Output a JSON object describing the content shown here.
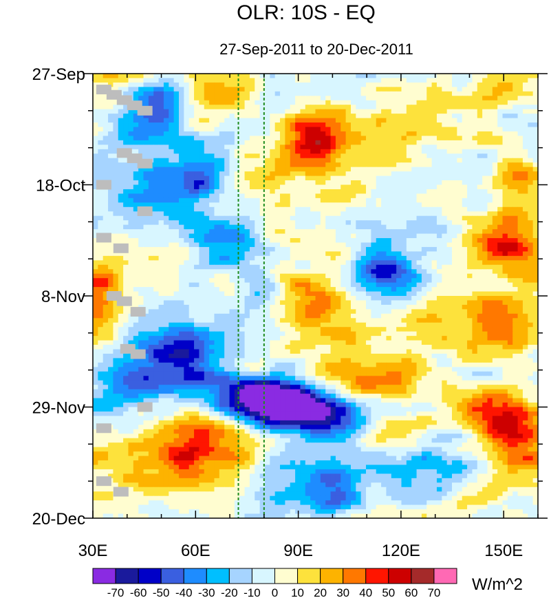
{
  "chart_data": {
    "type": "heatmap",
    "title": "OLR: 10S - EQ",
    "subtitle": "27-Sep-2011 to 20-Dec-2011",
    "x_axis": {
      "range": [
        30,
        160
      ],
      "tick_values": [
        30,
        60,
        90,
        120,
        150
      ],
      "tick_labels": [
        "30E",
        "60E",
        "90E",
        "120E",
        "150E"
      ],
      "minor_tick_step": 10
    },
    "y_axis": {
      "range_days": [
        0,
        84
      ],
      "tick_days": [
        0,
        21,
        42,
        63,
        84
      ],
      "tick_labels": [
        "27-Sep",
        "18-Oct",
        "8-Nov",
        "29-Nov",
        "20-Dec"
      ],
      "minor_tick_step_days": 7,
      "direction": "time increases downward"
    },
    "reference_lines_lon": [
      72.5,
      80
    ],
    "reference_line_color": "#1e8c1e",
    "missing_color": "#bdbdbd",
    "colorbar": {
      "unit_label": "W/m^2",
      "levels": [
        -70,
        -60,
        -50,
        -40,
        -30,
        -20,
        -10,
        0,
        10,
        20,
        30,
        40,
        50,
        60,
        70
      ],
      "level_labels": [
        "-70",
        "-60",
        "-50",
        "-40",
        "-30",
        "-20",
        "-10",
        "0",
        "10",
        "20",
        "30",
        "40",
        "50",
        "60",
        "70"
      ],
      "colors": [
        "#8a2be2",
        "#1a1a9c",
        "#0000c8",
        "#3a5fe0",
        "#1e8cff",
        "#00bfff",
        "#a6d4ff",
        "#d8f6ff",
        "#fffdd0",
        "#fde23c",
        "#fdb300",
        "#ff7800",
        "#ff1500",
        "#cd0000",
        "#a52a2a",
        "#ff69b4"
      ]
    },
    "anomaly_features": [
      {
        "lon": 95,
        "day": 12,
        "amp": 55,
        "sx": 7,
        "sy": 4
      },
      {
        "lon": 66,
        "day": 4,
        "amp": 35,
        "sx": 8,
        "sy": 3
      },
      {
        "lon": 49,
        "day": 6,
        "amp": -40,
        "sx": 6,
        "sy": 4
      },
      {
        "lon": 48,
        "day": 23,
        "amp": -40,
        "sx": 8,
        "sy": 4
      },
      {
        "lon": 62,
        "day": 20,
        "amp": -45,
        "sx": 5,
        "sy": 3
      },
      {
        "lon": 66,
        "day": 31,
        "amp": -40,
        "sx": 8,
        "sy": 4
      },
      {
        "lon": 155,
        "day": 19,
        "amp": 40,
        "sx": 6,
        "sy": 3
      },
      {
        "lon": 150,
        "day": 32,
        "amp": 45,
        "sx": 7,
        "sy": 4
      },
      {
        "lon": 117,
        "day": 38,
        "amp": -50,
        "sx": 6,
        "sy": 3
      },
      {
        "lon": 95,
        "day": 42,
        "amp": 35,
        "sx": 8,
        "sy": 5
      },
      {
        "lon": 150,
        "day": 48,
        "amp": 35,
        "sx": 10,
        "sy": 4
      },
      {
        "lon": 55,
        "day": 55,
        "amp": -50,
        "sx": 8,
        "sy": 5
      },
      {
        "lon": 75,
        "day": 61,
        "amp": -65,
        "sx": 9,
        "sy": 3
      },
      {
        "lon": 85,
        "day": 62,
        "amp": -60,
        "sx": 9,
        "sy": 3
      },
      {
        "lon": 96,
        "day": 64,
        "amp": -55,
        "sx": 9,
        "sy": 3
      },
      {
        "lon": 40,
        "day": 60,
        "amp": -30,
        "sx": 6,
        "sy": 4
      },
      {
        "lon": 112,
        "day": 58,
        "amp": 30,
        "sx": 10,
        "sy": 3
      },
      {
        "lon": 145,
        "day": 63,
        "amp": 45,
        "sx": 10,
        "sy": 3
      },
      {
        "lon": 60,
        "day": 72,
        "amp": 40,
        "sx": 10,
        "sy": 7
      },
      {
        "lon": 155,
        "day": 68,
        "amp": 40,
        "sx": 7,
        "sy": 4
      },
      {
        "lon": 100,
        "day": 78,
        "amp": -30,
        "sx": 10,
        "sy": 5
      },
      {
        "lon": 130,
        "day": 75,
        "amp": -35,
        "sx": 8,
        "sy": 4
      },
      {
        "lon": 120,
        "day": 68,
        "amp": 30,
        "sx": 8,
        "sy": 3
      },
      {
        "lon": 32,
        "day": 42,
        "amp": 30,
        "sx": 4,
        "sy": 5
      }
    ],
    "missing_cells_lon_day": [
      [
        33,
        3
      ],
      [
        36,
        4
      ],
      [
        39,
        5
      ],
      [
        42,
        6
      ],
      [
        45,
        7
      ],
      [
        39,
        15
      ],
      [
        42,
        16
      ],
      [
        45,
        17
      ],
      [
        33,
        21
      ],
      [
        45,
        26
      ],
      [
        33,
        31
      ],
      [
        38,
        33
      ],
      [
        36,
        42
      ],
      [
        39,
        43
      ],
      [
        43,
        45
      ],
      [
        40,
        52
      ],
      [
        43,
        53
      ],
      [
        45,
        63
      ],
      [
        33,
        67
      ],
      [
        33,
        77
      ],
      [
        38,
        79
      ]
    ]
  }
}
